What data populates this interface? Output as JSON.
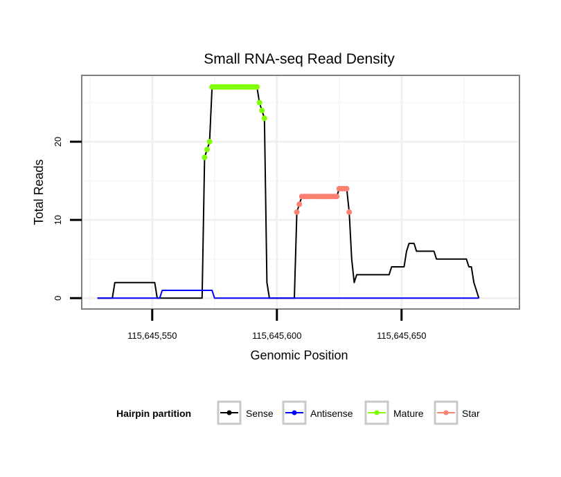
{
  "chart_data": {
    "type": "line",
    "title": "Small RNA-seq Read Density",
    "xlabel": "Genomic Position",
    "ylabel": "Total Reads",
    "xlim": [
      115645522,
      115645697
    ],
    "ylim": [
      -1.3,
      28.4
    ],
    "x_ticks": [
      {
        "value": 115645550,
        "label": "115,645,550"
      },
      {
        "value": 115645600,
        "label": "115,645,600"
      },
      {
        "value": 115645650,
        "label": "115,645,650"
      }
    ],
    "y_ticks": [
      {
        "value": 0,
        "label": "0"
      },
      {
        "value": 10,
        "label": "10"
      },
      {
        "value": 20,
        "label": "20"
      }
    ],
    "grid": true,
    "legend": {
      "title": "Hairpin partition",
      "position": "bottom",
      "items": [
        {
          "name": "Sense",
          "color": "#000000"
        },
        {
          "name": "Antisense",
          "color": "#0000ff"
        },
        {
          "name": "Mature",
          "color": "#7fff00"
        },
        {
          "name": "Star",
          "color": "#fa8072"
        }
      ]
    },
    "series": [
      {
        "name": "Sense",
        "color": "#000000",
        "points": [
          [
            115645528,
            0
          ],
          [
            115645534,
            0
          ],
          [
            115645535,
            2
          ],
          [
            115645551,
            2
          ],
          [
            115645552,
            0
          ],
          [
            115645570,
            0
          ],
          [
            115645571,
            18
          ],
          [
            115645572,
            19
          ],
          [
            115645573,
            20
          ],
          [
            115645574,
            27
          ],
          [
            115645592,
            27
          ],
          [
            115645593,
            25
          ],
          [
            115645594,
            24
          ],
          [
            115645595,
            23
          ],
          [
            115645596,
            2
          ],
          [
            115645597,
            0
          ],
          [
            115645607,
            0
          ],
          [
            115645608,
            11
          ],
          [
            115645609,
            12
          ],
          [
            115645610,
            13
          ],
          [
            115645624,
            13
          ],
          [
            115645625,
            14
          ],
          [
            115645628,
            14
          ],
          [
            115645629,
            11
          ],
          [
            115645630,
            5
          ],
          [
            115645631,
            2
          ],
          [
            115645632,
            3
          ],
          [
            115645645,
            3
          ],
          [
            115645646,
            4
          ],
          [
            115645651,
            4
          ],
          [
            115645652,
            6
          ],
          [
            115645653,
            7
          ],
          [
            115645655,
            7
          ],
          [
            115645656,
            6
          ],
          [
            115645663,
            6
          ],
          [
            115645664,
            5
          ],
          [
            115645676,
            5
          ],
          [
            115645677,
            4
          ],
          [
            115645678,
            4
          ],
          [
            115645679,
            2
          ],
          [
            115645680,
            1
          ],
          [
            115645681,
            0
          ]
        ]
      },
      {
        "name": "Antisense",
        "color": "#0000ff",
        "points": [
          [
            115645528,
            0
          ],
          [
            115645553,
            0
          ],
          [
            115645554,
            1
          ],
          [
            115645560,
            1
          ],
          [
            115645571,
            1
          ],
          [
            115645574,
            1
          ],
          [
            115645575,
            0
          ],
          [
            115645681,
            0
          ]
        ]
      },
      {
        "name": "Mature",
        "color": "#7fff00",
        "points": [
          [
            115645571,
            18
          ],
          [
            115645572,
            19
          ],
          [
            115645573,
            20
          ],
          [
            115645574,
            27
          ],
          [
            115645575,
            27
          ],
          [
            115645576,
            27
          ],
          [
            115645577,
            27
          ],
          [
            115645578,
            27
          ],
          [
            115645579,
            27
          ],
          [
            115645580,
            27
          ],
          [
            115645581,
            27
          ],
          [
            115645582,
            27
          ],
          [
            115645583,
            27
          ],
          [
            115645584,
            27
          ],
          [
            115645585,
            27
          ],
          [
            115645586,
            27
          ],
          [
            115645587,
            27
          ],
          [
            115645588,
            27
          ],
          [
            115645589,
            27
          ],
          [
            115645590,
            27
          ],
          [
            115645591,
            27
          ],
          [
            115645592,
            27
          ],
          [
            115645593,
            25
          ],
          [
            115645594,
            24
          ],
          [
            115645595,
            23
          ]
        ]
      },
      {
        "name": "Star",
        "color": "#fa8072",
        "points": [
          [
            115645608,
            11
          ],
          [
            115645609,
            12
          ],
          [
            115645610,
            13
          ],
          [
            115645611,
            13
          ],
          [
            115645612,
            13
          ],
          [
            115645613,
            13
          ],
          [
            115645614,
            13
          ],
          [
            115645615,
            13
          ],
          [
            115645616,
            13
          ],
          [
            115645617,
            13
          ],
          [
            115645618,
            13
          ],
          [
            115645619,
            13
          ],
          [
            115645620,
            13
          ],
          [
            115645621,
            13
          ],
          [
            115645622,
            13
          ],
          [
            115645623,
            13
          ],
          [
            115645624,
            13
          ],
          [
            115645625,
            14
          ],
          [
            115645626,
            14
          ],
          [
            115645627,
            14
          ],
          [
            115645628,
            14
          ],
          [
            115645629,
            11
          ]
        ]
      }
    ]
  }
}
